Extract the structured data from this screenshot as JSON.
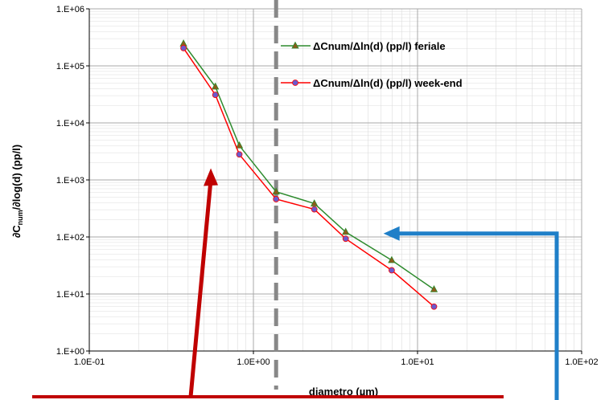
{
  "chart_data": {
    "type": "line",
    "x_scale": "log",
    "y_scale": "log",
    "xlim": [
      0.1,
      100
    ],
    "ylim": [
      1,
      1000000
    ],
    "grid": true,
    "legend_position": "top-right",
    "xlabel": "diametro (µm)",
    "ylabel_parts": {
      "main": "∂C",
      "sub": "num",
      "rest": "/∂log(d) (pp/l)"
    },
    "x_tick_labels": [
      "1.0E-01",
      "1.0E+00",
      "1.0E+01",
      "1.0E+02"
    ],
    "y_tick_labels": [
      "1.E+00",
      "1.E+01",
      "1.E+02",
      "1.E+03",
      "1.E+04",
      "1.E+05",
      "1.E+06"
    ],
    "series": [
      {
        "name": "ΔCnum/Δln(d) (pp/l) feriale",
        "color": "#2e8b2e",
        "marker": "triangle",
        "marker_color": "#8b5a1a",
        "x": [
          0.375,
          0.586,
          0.821,
          1.375,
          2.35,
          3.65,
          6.96,
          12.6
        ],
        "y": [
          245000,
          43000,
          4000,
          620,
          385,
          122,
          39,
          12
        ]
      },
      {
        "name": "ΔCnum/Δln(d) (pp/l) week-end",
        "color": "#ff0000",
        "marker": "circle",
        "marker_color": "#6a5acd",
        "x": [
          0.375,
          0.586,
          0.821,
          1.375,
          2.35,
          3.65,
          6.96,
          12.6
        ],
        "y": [
          205000,
          31000,
          2800,
          460,
          305,
          93,
          26,
          6
        ]
      }
    ],
    "annotations": {
      "vertical_dashed_line": {
        "x": 1.375,
        "color": "#888888"
      },
      "red_arrow": {
        "color": "#c00000",
        "tip": {
          "x": 0.55,
          "y": 1600
        }
      },
      "blue_arrow": {
        "color": "#1f7fc8",
        "tip": {
          "x": 6.2,
          "y": 115
        }
      }
    }
  }
}
